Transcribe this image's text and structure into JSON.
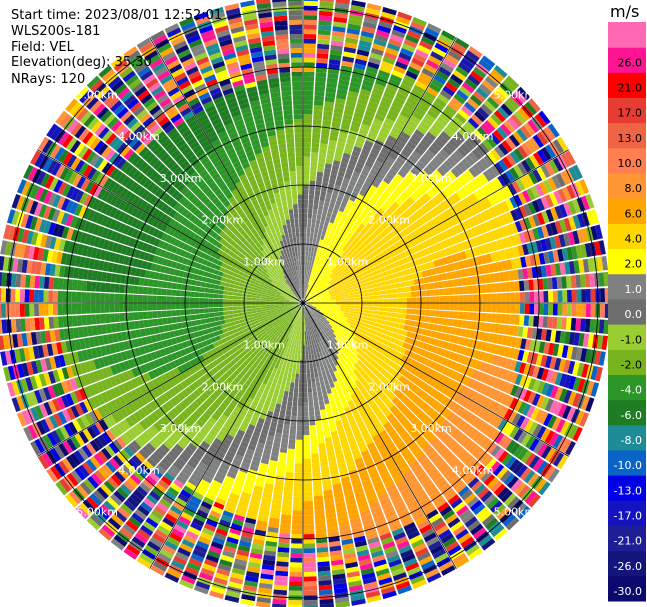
{
  "meta": {
    "start_time": "Start time: 2023/08/01 12:52:01",
    "instrument": "WLS200s-181",
    "field": "Field: VEL",
    "elevation": "Elevation(deg): 35.30",
    "nrays": "NRays: 120"
  },
  "chart_data": {
    "type": "heatmap",
    "projection": "polar PPI (plan position indicator)",
    "title": "",
    "units": "m/s",
    "range_rings_km": [
      1,
      2,
      3,
      4,
      5
    ],
    "ring_label_text": [
      "1.00km",
      "2.00km",
      "3.00km",
      "4.00km",
      "5.00km"
    ],
    "spokes_deg": [
      0,
      30,
      60,
      90,
      120,
      150,
      180,
      210,
      240,
      270,
      300,
      330
    ],
    "max_range_km": 5.2,
    "rays": 120,
    "colorbar": {
      "levels": [
        -30.0,
        -26.0,
        -21.0,
        -17.0,
        -13.0,
        -10.0,
        -8.0,
        -6.0,
        -4.0,
        -2.0,
        -1.0,
        0.0,
        1.0,
        2.0,
        4.0,
        6.0,
        8.0,
        10.0,
        13.0,
        17.0,
        21.0,
        26.0
      ],
      "labels": [
        "-30.0",
        "-26.0",
        "-21.0",
        "-17.0",
        "-13.0",
        "-10.0",
        "-8.0",
        "-6.0",
        "-4.0",
        "-2.0",
        "-1.0",
        "0.0",
        "1.0",
        "2.0",
        "4.0",
        "6.0",
        "8.0",
        "10.0",
        "13.0",
        "17.0",
        "21.0",
        "26.0"
      ],
      "colors": [
        "#0a0a6e",
        "#14147d",
        "#1e1e96",
        "#1414be",
        "#0000e6",
        "#0a64c8",
        "#1e8c96",
        "#1e7d23",
        "#2d9628",
        "#78b41e",
        "#9acd32",
        "#6e6e6e",
        "#7f8080",
        "#ffff00",
        "#ffd700",
        "#ffa500",
        "#ff9632",
        "#ff7f50",
        "#f06446",
        "#e63c32",
        "#ff0000",
        "#ff1493",
        "#ff69b4"
      ],
      "label_colors": [
        "#ffffff",
        "#ffffff",
        "#ffffff",
        "#ffffff",
        "#ffffff",
        "#ffffff",
        "#ffffff",
        "#ffffff",
        "#ffffff",
        "#000000",
        "#000000",
        "#ffffff",
        "#ffffff",
        "#000000",
        "#000000",
        "#000000",
        "#000000",
        "#000000",
        "#000000",
        "#000000",
        "#000000",
        "#000000"
      ]
    }
  }
}
